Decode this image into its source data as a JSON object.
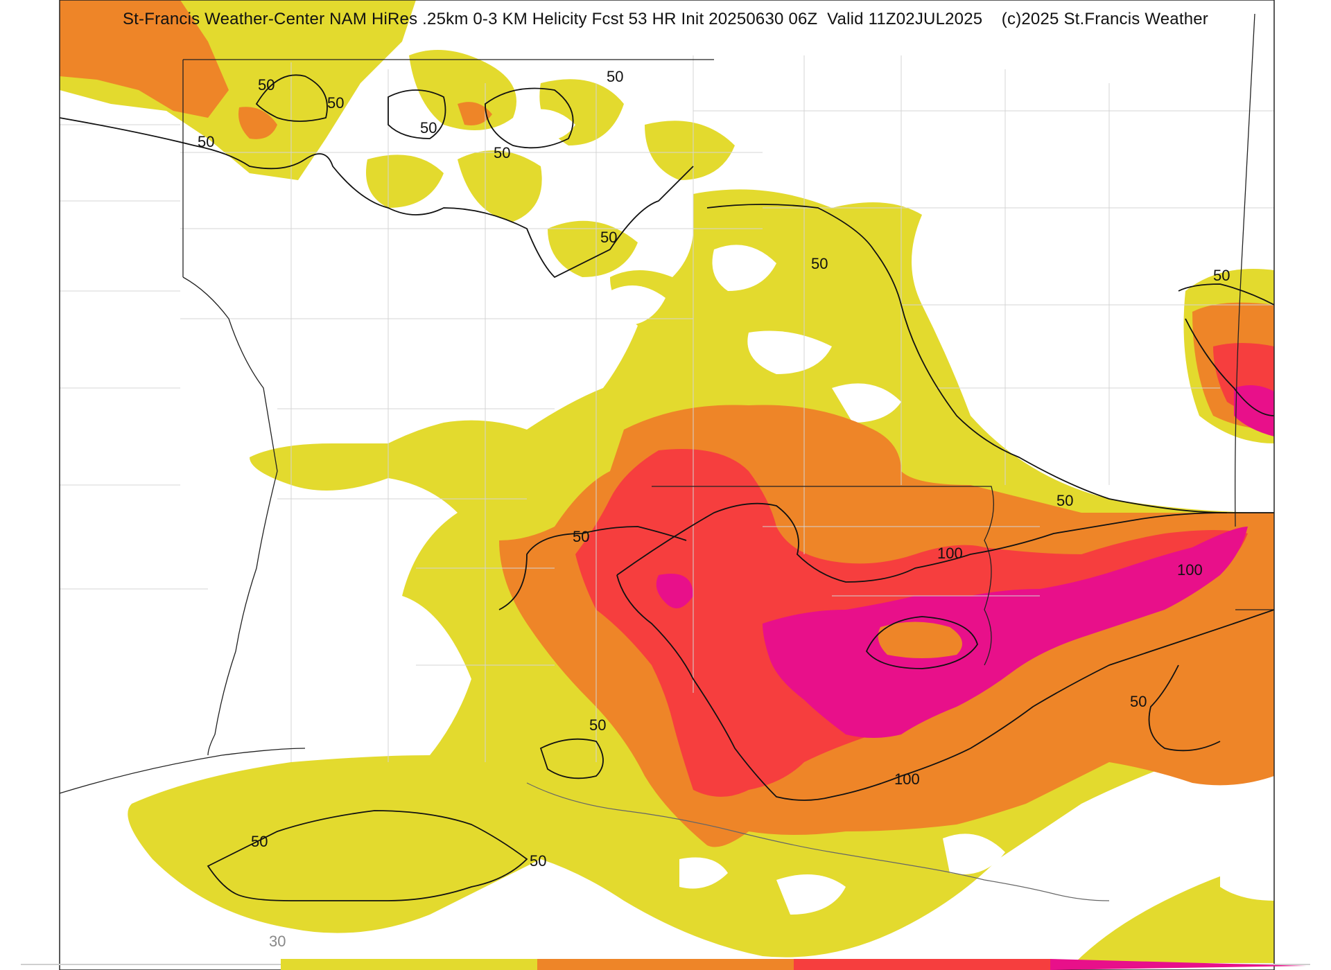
{
  "header": {
    "title": "St-Francis Weather-Center NAM HiRes .25km 0-3 KM Helicity Fcst 53 HR Init 20250630 06Z  Valid 11Z02JUL2025    (c)2025 St.Francis Weather"
  },
  "legend": {
    "colors": [
      "#e3da2e",
      "#ee8528",
      "#f63e3e",
      "#e8108a"
    ],
    "tick_label": "30"
  },
  "contours": {
    "label_50": "50",
    "label_100": "100"
  }
}
